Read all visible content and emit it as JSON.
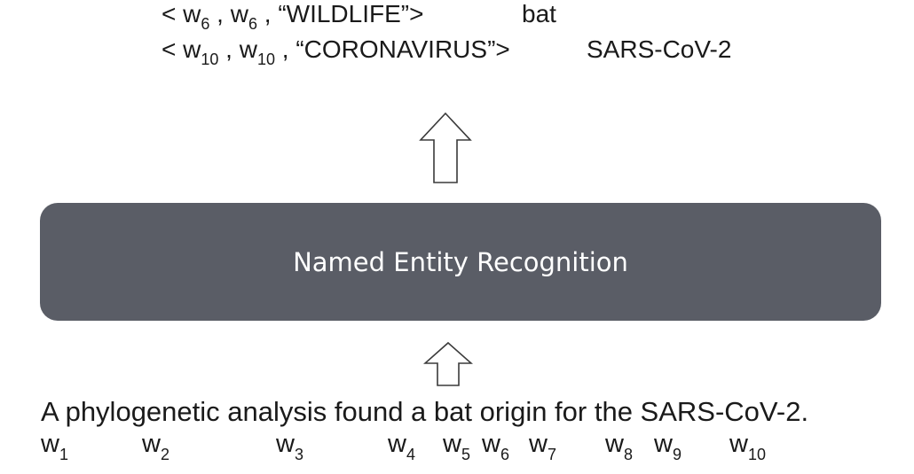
{
  "entities": [
    {
      "word": "w",
      "index": "6",
      "label": "“WILDLIFE”",
      "text": "bat"
    },
    {
      "word": "w",
      "index": "10",
      "label": "“CORONAVIRUS”",
      "text": "SARS-CoV-2"
    }
  ],
  "ner": {
    "label": "Named Entity Recognition"
  },
  "sentence": "A phylogenetic analysis found a bat origin for the SARS-CoV-2.",
  "tokens": [
    {
      "word": "w",
      "index": "1"
    },
    {
      "word": "w",
      "index": "2"
    },
    {
      "word": "w",
      "index": "3"
    },
    {
      "word": "w",
      "index": "4"
    },
    {
      "word": "w",
      "index": "5"
    },
    {
      "word": "w",
      "index": "6"
    },
    {
      "word": "w",
      "index": "7"
    },
    {
      "word": "w",
      "index": "8"
    },
    {
      "word": "w",
      "index": "9"
    },
    {
      "word": "w",
      "index": "10"
    }
  ],
  "colors": {
    "box": "#5a5d66",
    "box_text": "#ffffff",
    "text": "#1a1a1a"
  }
}
